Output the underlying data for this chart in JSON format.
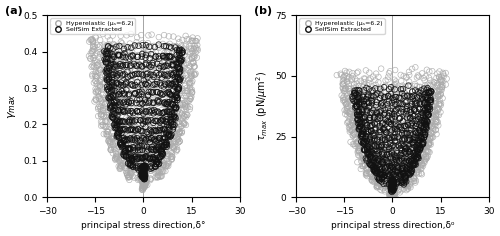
{
  "panel_a": {
    "xlabel": "principal stress direction,δ°",
    "ylabel_latex": "$\\gamma_{max}$",
    "xlim": [
      -30,
      30
    ],
    "ylim": [
      0,
      0.5
    ],
    "xticks": [
      -30,
      -15,
      0,
      15,
      30
    ],
    "yticks": [
      0,
      0.1,
      0.2,
      0.3,
      0.4,
      0.5
    ],
    "label": "(a)",
    "n_curves_hyp": 18,
    "n_curves_sel": 14,
    "y_min_hyp": 0.04,
    "y_max_hyp": 0.43,
    "y_min_sel": 0.07,
    "y_max_sel": 0.4,
    "x_max_hyp": 22,
    "x_max_sel": 16
  },
  "panel_b": {
    "xlabel": "principal stress direction,δᵒ",
    "ylabel_latex": "$\\tau_{max}$ (pN/$\\mu$m$^2$)",
    "xlim": [
      -30,
      30
    ],
    "ylim": [
      0,
      75
    ],
    "xticks": [
      -30,
      -15,
      0,
      15,
      30
    ],
    "yticks": [
      0,
      25,
      50,
      75
    ],
    "label": "(b)",
    "n_curves_hyp": 18,
    "n_curves_sel": 14,
    "y_min_hyp": 2,
    "y_max_hyp": 50,
    "y_min_sel": 5,
    "y_max_sel": 43,
    "x_max_hyp": 20,
    "x_max_sel": 15
  },
  "legend": {
    "hyperelastic_label": "Hyperelastic (μₛ=6.2)",
    "selfsim_label": "SelfSim Extracted",
    "hyperelastic_color": "#aaaaaa",
    "selfsim_color": "#111111"
  },
  "n_pts_per_curve": 60,
  "marker_size": 4,
  "figsize": [
    5.0,
    2.36
  ],
  "dpi": 100
}
